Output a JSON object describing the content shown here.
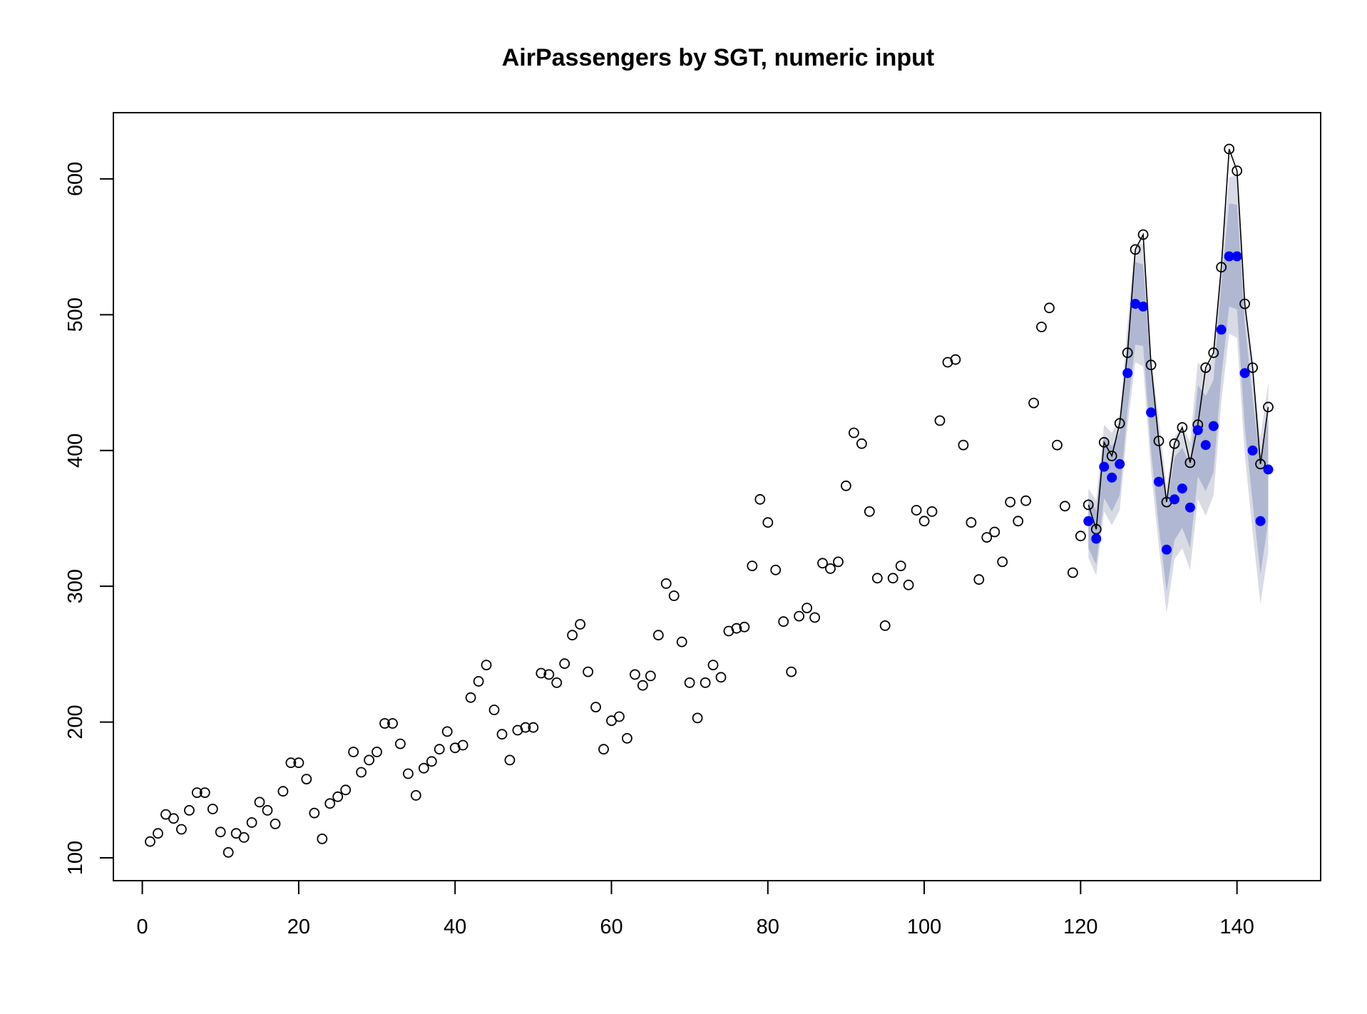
{
  "chart_data": {
    "type": "scatter",
    "title": "AirPassengers by SGT, numeric input",
    "xlabel": "",
    "ylabel": "",
    "xlim": [
      -3.7,
      150.7
    ],
    "ylim": [
      83.2,
      648.8
    ],
    "x_ticks": [
      0,
      20,
      40,
      60,
      80,
      100,
      120,
      140
    ],
    "y_ticks": [
      100,
      200,
      300,
      400,
      500,
      600
    ],
    "legend": "none",
    "grid": false,
    "colors": {
      "observed_stroke": "#000000",
      "forecast_fill": "#0000ff",
      "outer_band": "#d9dbe4",
      "inner_band": "#b0b7d2",
      "line": "#000000"
    },
    "series": [
      {
        "kind": "observed",
        "x_start": 1,
        "values": [
          112,
          118,
          132,
          129,
          121,
          135,
          148,
          148,
          136,
          119,
          104,
          118,
          115,
          126,
          141,
          135,
          125,
          149,
          170,
          170,
          158,
          133,
          114,
          140,
          145,
          150,
          178,
          163,
          172,
          178,
          199,
          199,
          184,
          162,
          146,
          166,
          171,
          180,
          193,
          181,
          183,
          218,
          230,
          242,
          209,
          191,
          172,
          194,
          196,
          196,
          236,
          235,
          229,
          243,
          264,
          272,
          237,
          211,
          180,
          201,
          204,
          188,
          235,
          227,
          234,
          264,
          302,
          293,
          259,
          229,
          203,
          229,
          242,
          233,
          267,
          269,
          270,
          315,
          364,
          347,
          312,
          274,
          237,
          278,
          284,
          277,
          317,
          313,
          318,
          374,
          413,
          405,
          355,
          306,
          271,
          306,
          315,
          301,
          356,
          348,
          355,
          422,
          465,
          467,
          404,
          347,
          305,
          336,
          340,
          318,
          362,
          348,
          363,
          435,
          491,
          505,
          404,
          359,
          310,
          337,
          360,
          342,
          406,
          396,
          420,
          472,
          548,
          559,
          463,
          407,
          362,
          405,
          417,
          391,
          419,
          461,
          472,
          535,
          622,
          606,
          508,
          461,
          390,
          432
        ]
      },
      {
        "kind": "forecast",
        "x": [
          121,
          122,
          123,
          124,
          125,
          126,
          127,
          128,
          129,
          130,
          131,
          132,
          133,
          134,
          135,
          136,
          137,
          138,
          139,
          140,
          141,
          142,
          143,
          144
        ],
        "values": [
          348,
          335,
          388,
          380,
          390,
          457,
          508,
          506,
          428,
          377,
          327,
          364,
          372,
          358,
          415,
          404,
          418,
          489,
          543,
          543,
          457,
          400,
          348,
          386
        ],
        "inner_lower": [
          328,
          316,
          365,
          355,
          367,
          430,
          478,
          477,
          400,
          344,
          296,
          334,
          343,
          328,
          381,
          370,
          384,
          454,
          506,
          504,
          417,
          362,
          309,
          348
        ],
        "inner_upper": [
          365,
          356,
          410,
          403,
          413,
          482,
          539,
          537,
          456,
          409,
          358,
          395,
          402,
          390,
          448,
          440,
          452,
          523,
          582,
          581,
          494,
          439,
          388,
          425
        ],
        "outer_lower": [
          321,
          308,
          355,
          345,
          356,
          418,
          465,
          462,
          385,
          330,
          280,
          320,
          328,
          312,
          364,
          352,
          367,
          436,
          486,
          483,
          397,
          340,
          287,
          325
        ],
        "outer_upper": [
          372,
          363,
          419,
          413,
          423,
          494,
          552,
          552,
          470,
          423,
          374,
          410,
          418,
          406,
          465,
          458,
          470,
          541,
          601,
          603,
          514,
          460,
          409,
          450
        ]
      }
    ]
  }
}
